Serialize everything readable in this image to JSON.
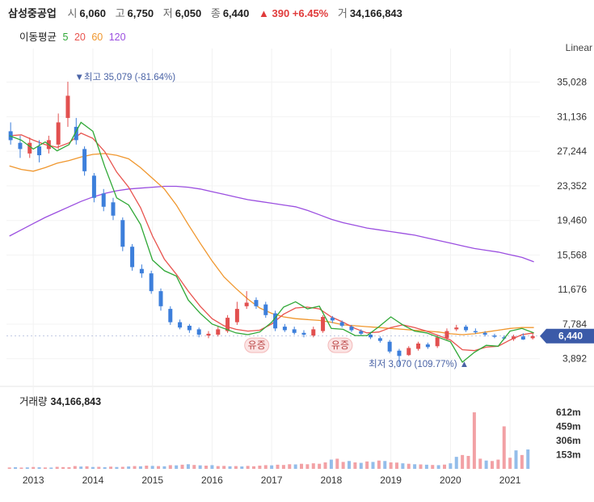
{
  "header": {
    "name": "삼성중공업",
    "open_label": "시",
    "open": "6,060",
    "high_label": "고",
    "high": "6,750",
    "low_label": "저",
    "low": "6,050",
    "close_label": "종",
    "close": "6,440",
    "change": "▲ 390 +6.45%",
    "volume_label": "거",
    "volume": "34,166,843"
  },
  "ma_legend": {
    "title": "이동평균",
    "items": [
      {
        "label": "5",
        "color": "#2fa836"
      },
      {
        "label": "20",
        "color": "#e8534e"
      },
      {
        "label": "60",
        "color": "#f0972e"
      },
      {
        "label": "120",
        "color": "#9b4fe0"
      }
    ]
  },
  "scale_label": "Linear",
  "colors": {
    "up": "#e2504f",
    "down": "#3d7fdb",
    "price_tag": "#3b5aa8",
    "vol_up": "#f2a1a5",
    "vol_down": "#93bdea"
  },
  "chart_data": {
    "type": "line",
    "title": "",
    "price_axis": {
      "ticks": [
        35028,
        31136,
        27244,
        23352,
        19460,
        15568,
        11676,
        7784,
        3892
      ],
      "tick_labels": [
        "35,028",
        "31,136",
        "27,244",
        "23,352",
        "19,460",
        "15,568",
        "11,676",
        "7,784",
        "3,892"
      ],
      "ylim": [
        1500,
        37000
      ]
    },
    "x_axis": {
      "ticks": [
        "2013",
        "2014",
        "2015",
        "2016",
        "2017",
        "2018",
        "2019",
        "2020",
        "2021"
      ],
      "tick_x": [
        2013.0,
        2014.0,
        2015.0,
        2016.0,
        2017.0,
        2018.0,
        2019.0,
        2020.0,
        2021.0
      ],
      "xlim": [
        2012.55,
        2021.5
      ]
    },
    "current_price": {
      "value": 6440,
      "label": "6,440"
    },
    "annotations": [
      {
        "text": "▼최고 35,079 (-81.64%)",
        "x": 2013.75,
        "y": 35079,
        "anchor": "top"
      },
      {
        "text": "최저 3,070 (109.77%) ▲",
        "x": 2020.2,
        "y": 3070,
        "anchor": "bottom"
      },
      {
        "text": "유증",
        "x": 2016.75,
        "y": 5400,
        "anchor": "tag"
      },
      {
        "text": "유증",
        "x": 2018.15,
        "y": 5400,
        "anchor": "tag"
      }
    ],
    "ma5": {
      "name": "5",
      "x": [
        2012.6,
        2012.8,
        2013.0,
        2013.2,
        2013.4,
        2013.6,
        2013.8,
        2014.0,
        2014.2,
        2014.4,
        2014.6,
        2014.8,
        2015.0,
        2015.2,
        2015.4,
        2015.6,
        2015.8,
        2016.0,
        2016.2,
        2016.4,
        2016.6,
        2016.8,
        2017.0,
        2017.2,
        2017.4,
        2017.6,
        2017.8,
        2018.0,
        2018.2,
        2018.4,
        2018.6,
        2018.8,
        2019.0,
        2019.2,
        2019.4,
        2019.6,
        2019.8,
        2020.0,
        2020.2,
        2020.4,
        2020.6,
        2020.8,
        2021.0,
        2021.2,
        2021.4
      ],
      "y": [
        29000,
        28500,
        27500,
        28300,
        27300,
        28000,
        30500,
        29500,
        25500,
        22000,
        21200,
        19000,
        15000,
        13800,
        13200,
        10500,
        9000,
        7800,
        7300,
        6800,
        6600,
        6900,
        8000,
        9700,
        10300,
        9500,
        9800,
        7300,
        7200,
        6500,
        6500,
        7500,
        8600,
        7700,
        7000,
        6800,
        6300,
        5800,
        3500,
        4600,
        5400,
        5300,
        7000,
        7300,
        6800
      ]
    },
    "ma20": {
      "name": "20",
      "x": [
        2012.6,
        2012.8,
        2013.0,
        2013.2,
        2013.4,
        2013.6,
        2013.8,
        2014.0,
        2014.2,
        2014.4,
        2014.6,
        2014.8,
        2015.0,
        2015.2,
        2015.4,
        2015.6,
        2015.8,
        2016.0,
        2016.2,
        2016.4,
        2016.6,
        2016.8,
        2017.0,
        2017.2,
        2017.4,
        2017.6,
        2017.8,
        2018.0,
        2018.2,
        2018.4,
        2018.6,
        2018.8,
        2019.0,
        2019.2,
        2019.4,
        2019.6,
        2019.8,
        2020.0,
        2020.2,
        2020.4,
        2020.6,
        2020.8,
        2021.0,
        2021.2,
        2021.4
      ],
      "y": [
        29000,
        29100,
        28500,
        28000,
        27700,
        28200,
        29300,
        28700,
        27200,
        24900,
        23200,
        20900,
        17700,
        15100,
        13400,
        11500,
        9800,
        8400,
        7600,
        7200,
        7000,
        7100,
        7800,
        8900,
        9600,
        9700,
        9500,
        8600,
        8000,
        7300,
        6800,
        6900,
        7400,
        7700,
        7400,
        7000,
        6500,
        6000,
        4900,
        4800,
        5200,
        5300,
        6000,
        6600,
        6800
      ]
    },
    "ma60": {
      "name": "60",
      "x": [
        2012.6,
        2012.8,
        2013.0,
        2013.2,
        2013.4,
        2013.6,
        2013.8,
        2014.0,
        2014.2,
        2014.4,
        2014.6,
        2014.8,
        2015.0,
        2015.2,
        2015.4,
        2015.6,
        2015.8,
        2016.0,
        2016.2,
        2016.4,
        2016.6,
        2016.8,
        2017.0,
        2017.2,
        2017.4,
        2017.6,
        2017.8,
        2018.0,
        2018.2,
        2018.4,
        2018.6,
        2018.8,
        2019.0,
        2019.2,
        2019.4,
        2019.6,
        2019.8,
        2020.0,
        2020.2,
        2020.4,
        2020.6,
        2020.8,
        2021.0,
        2021.2,
        2021.4
      ],
      "y": [
        25600,
        25200,
        25000,
        25400,
        25900,
        26200,
        26600,
        26900,
        27000,
        26800,
        26400,
        25400,
        24200,
        23000,
        21200,
        19000,
        16900,
        14900,
        13100,
        11800,
        10600,
        9600,
        9000,
        8600,
        8400,
        8300,
        8200,
        8000,
        7700,
        7600,
        7500,
        7400,
        7300,
        7200,
        7100,
        7000,
        6900,
        6700,
        6600,
        6700,
        6900,
        7100,
        7300,
        7400,
        7400
      ]
    },
    "ma120": {
      "name": "120",
      "x": [
        2012.6,
        2012.8,
        2013.0,
        2013.2,
        2013.4,
        2013.6,
        2013.8,
        2014.0,
        2014.2,
        2014.4,
        2014.6,
        2014.8,
        2015.0,
        2015.2,
        2015.4,
        2015.6,
        2015.8,
        2016.0,
        2016.2,
        2016.4,
        2016.6,
        2016.8,
        2017.0,
        2017.2,
        2017.4,
        2017.6,
        2017.8,
        2018.0,
        2018.2,
        2018.4,
        2018.6,
        2018.8,
        2019.0,
        2019.2,
        2019.4,
        2019.6,
        2019.8,
        2020.0,
        2020.2,
        2020.4,
        2020.6,
        2020.8,
        2021.0,
        2021.2,
        2021.4
      ],
      "y": [
        17700,
        18400,
        19100,
        19800,
        20400,
        21000,
        21600,
        22100,
        22500,
        22800,
        23000,
        23100,
        23200,
        23300,
        23300,
        23200,
        23000,
        22700,
        22400,
        22100,
        21800,
        21600,
        21400,
        21200,
        21000,
        20600,
        20100,
        19600,
        19200,
        18900,
        18600,
        18400,
        18200,
        18000,
        17800,
        17500,
        17200,
        16900,
        16600,
        16300,
        16100,
        15900,
        15600,
        15300,
        14800
      ]
    },
    "candles": {
      "x": [
        2012.62,
        2012.78,
        2012.94,
        2013.1,
        2013.26,
        2013.42,
        2013.58,
        2013.72,
        2013.86,
        2014.02,
        2014.18,
        2014.34,
        2014.5,
        2014.66,
        2014.82,
        2014.98,
        2015.14,
        2015.3,
        2015.46,
        2015.62,
        2015.78,
        2015.94,
        2016.1,
        2016.26,
        2016.42,
        2016.58,
        2016.74,
        2016.9,
        2017.06,
        2017.22,
        2017.38,
        2017.54,
        2017.7,
        2017.86,
        2018.02,
        2018.18,
        2018.34,
        2018.5,
        2018.66,
        2018.82,
        2018.98,
        2019.14,
        2019.3,
        2019.46,
        2019.62,
        2019.78,
        2019.94,
        2020.1,
        2020.26,
        2020.42,
        2020.58,
        2020.74,
        2020.9,
        2021.06,
        2021.22,
        2021.38
      ],
      "open": [
        29500,
        28200,
        27000,
        27800,
        27500,
        28000,
        31000,
        30000,
        27500,
        24500,
        22500,
        21500,
        19500,
        16500,
        14000,
        13500,
        11500,
        9500,
        8000,
        7600,
        7200,
        6500,
        6600,
        7000,
        8000,
        9800,
        10500,
        10000,
        9000,
        7500,
        7200,
        6800,
        6500,
        7000,
        8500,
        8000,
        7500,
        7000,
        6600,
        6200,
        5800,
        4800,
        4300,
        5000,
        5500,
        5300,
        6200,
        7200,
        7500,
        7000,
        6800,
        6500,
        6300,
        6100,
        6400,
        6200
      ],
      "close": [
        28500,
        27500,
        28200,
        26800,
        28500,
        30500,
        33500,
        28500,
        25000,
        22000,
        21000,
        20000,
        16500,
        14200,
        13500,
        11500,
        9800,
        8000,
        7400,
        7100,
        6600,
        6700,
        7200,
        8500,
        9500,
        10200,
        9800,
        8800,
        7300,
        7100,
        6800,
        6600,
        7200,
        8600,
        8200,
        7600,
        7100,
        6700,
        6300,
        5900,
        4700,
        4200,
        5100,
        5600,
        5200,
        6300,
        7000,
        7400,
        7100,
        6900,
        6600,
        6400,
        6200,
        6400,
        6050,
        6440
      ],
      "high": [
        30500,
        29000,
        28800,
        28500,
        29000,
        31500,
        35079,
        31000,
        27800,
        24800,
        23000,
        22000,
        19800,
        16800,
        14500,
        13800,
        11800,
        9800,
        8300,
        7800,
        7400,
        7000,
        7500,
        8800,
        10300,
        11500,
        10800,
        10300,
        9300,
        7800,
        7500,
        7100,
        7500,
        8800,
        8700,
        8200,
        7700,
        7200,
        6900,
        6400,
        6000,
        5000,
        5300,
        5800,
        5700,
        6500,
        7300,
        7700,
        7700,
        7300,
        7000,
        6700,
        6500,
        6600,
        6750,
        6750
      ],
      "low": [
        28000,
        26500,
        26500,
        26000,
        27000,
        27500,
        30000,
        28000,
        24500,
        21500,
        20500,
        19500,
        16000,
        13800,
        13000,
        11200,
        9300,
        7700,
        7200,
        6800,
        6300,
        6200,
        6400,
        6800,
        7700,
        9500,
        9500,
        8500,
        7000,
        6900,
        6600,
        6300,
        6300,
        6800,
        7900,
        7400,
        6900,
        6500,
        6100,
        5700,
        4500,
        3070,
        4200,
        4800,
        5000,
        5100,
        6000,
        7000,
        6900,
        6700,
        6400,
        6200,
        6000,
        5900,
        6000,
        6050
      ]
    },
    "volume": {
      "title": "거래량",
      "title_value": "34,166,843",
      "ticks": [
        612,
        459,
        306,
        153
      ],
      "tick_labels": [
        "612m",
        "459m",
        "306m",
        "153m"
      ],
      "unit": "m",
      "ylim": [
        0,
        700
      ],
      "x": [
        2012.6,
        2012.7,
        2012.8,
        2012.9,
        2013.0,
        2013.1,
        2013.2,
        2013.3,
        2013.4,
        2013.5,
        2013.6,
        2013.7,
        2013.8,
        2013.9,
        2014.0,
        2014.1,
        2014.2,
        2014.3,
        2014.4,
        2014.5,
        2014.6,
        2014.7,
        2014.8,
        2014.9,
        2015.0,
        2015.1,
        2015.2,
        2015.3,
        2015.4,
        2015.5,
        2015.6,
        2015.7,
        2015.8,
        2015.9,
        2016.0,
        2016.1,
        2016.2,
        2016.3,
        2016.4,
        2016.5,
        2016.6,
        2016.7,
        2016.8,
        2016.9,
        2017.0,
        2017.1,
        2017.2,
        2017.3,
        2017.4,
        2017.5,
        2017.6,
        2017.7,
        2017.8,
        2017.9,
        2018.0,
        2018.1,
        2018.2,
        2018.3,
        2018.4,
        2018.5,
        2018.6,
        2018.7,
        2018.8,
        2018.9,
        2019.0,
        2019.1,
        2019.2,
        2019.3,
        2019.4,
        2019.5,
        2019.6,
        2019.7,
        2019.8,
        2019.9,
        2020.0,
        2020.1,
        2020.2,
        2020.3,
        2020.4,
        2020.5,
        2020.6,
        2020.7,
        2020.8,
        2020.9,
        2021.0,
        2021.1,
        2021.2,
        2021.3
      ],
      "values": [
        15,
        18,
        14,
        16,
        20,
        17,
        15,
        14,
        22,
        19,
        18,
        30,
        25,
        28,
        20,
        22,
        18,
        24,
        20,
        22,
        26,
        30,
        28,
        35,
        32,
        30,
        28,
        40,
        38,
        45,
        50,
        42,
        38,
        35,
        40,
        30,
        32,
        28,
        30,
        26,
        32,
        28,
        35,
        40,
        38,
        45,
        42,
        50,
        48,
        55,
        50,
        60,
        55,
        70,
        100,
        110,
        75,
        85,
        70,
        65,
        80,
        75,
        90,
        85,
        70,
        68,
        60,
        55,
        50,
        48,
        45,
        42,
        40,
        46,
        60,
        130,
        150,
        140,
        612,
        110,
        90,
        85,
        100,
        460,
        120,
        200,
        150,
        210
      ],
      "up": [
        1,
        0,
        1,
        0,
        1,
        0,
        1,
        0,
        1,
        1,
        1,
        1,
        0,
        1,
        0,
        1,
        0,
        1,
        0,
        1,
        0,
        1,
        0,
        1,
        0,
        1,
        0,
        1,
        0,
        1,
        0,
        1,
        0,
        1,
        0,
        1,
        1,
        0,
        1,
        0,
        1,
        1,
        1,
        1,
        0,
        1,
        1,
        1,
        0,
        1,
        1,
        1,
        1,
        1,
        0,
        1,
        1,
        0,
        1,
        0,
        1,
        0,
        1,
        0,
        1,
        1,
        0,
        1,
        0,
        1,
        0,
        1,
        0,
        1,
        0,
        0,
        1,
        1,
        1,
        1,
        0,
        1,
        1,
        1,
        1,
        0,
        1,
        0
      ]
    }
  }
}
